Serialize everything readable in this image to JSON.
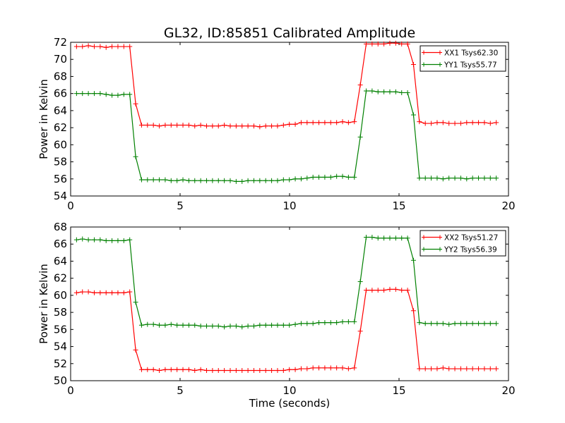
{
  "figure": {
    "title": "GL32, ID:85851 Calibrated Amplitude"
  },
  "chart_data": [
    {
      "type": "line",
      "title": "GL32, ID:85851 Calibrated Amplitude",
      "xlabel": "",
      "ylabel": "Power in Kelvin",
      "xlim": [
        0,
        20
      ],
      "ylim": [
        54,
        72
      ],
      "xticks": [
        "0",
        "5",
        "10",
        "15",
        "20"
      ],
      "yticks": [
        "54",
        "56",
        "58",
        "60",
        "62",
        "64",
        "66",
        "68",
        "70",
        "72"
      ],
      "grid": false,
      "legend_position": "top-right",
      "x": [
        0.27,
        0.54,
        0.81,
        1.08,
        1.35,
        1.62,
        1.89,
        2.16,
        2.43,
        2.7,
        2.97,
        3.24,
        3.51,
        3.78,
        4.05,
        4.32,
        4.59,
        4.86,
        5.13,
        5.4,
        5.67,
        5.94,
        6.21,
        6.48,
        6.75,
        7.02,
        7.29,
        7.56,
        7.83,
        8.1,
        8.37,
        8.64,
        8.91,
        9.18,
        9.45,
        9.72,
        9.99,
        10.26,
        10.53,
        10.8,
        11.07,
        11.34,
        11.61,
        11.88,
        12.15,
        12.42,
        12.69,
        12.96,
        13.23,
        13.5,
        13.77,
        14.04,
        14.31,
        14.58,
        14.85,
        15.12,
        15.39,
        15.66,
        15.93,
        16.2,
        16.47,
        16.74,
        17.01,
        17.28,
        17.55,
        17.82,
        18.09,
        18.36,
        18.63,
        18.9,
        19.17,
        19.44
      ],
      "series": [
        {
          "name": "XX1 Tsys62.30",
          "color": "#ff0000",
          "values": [
            71.5,
            71.5,
            71.6,
            71.5,
            71.5,
            71.4,
            71.5,
            71.5,
            71.5,
            71.5,
            64.8,
            62.3,
            62.3,
            62.3,
            62.2,
            62.3,
            62.3,
            62.3,
            62.3,
            62.3,
            62.2,
            62.3,
            62.2,
            62.2,
            62.2,
            62.3,
            62.2,
            62.2,
            62.2,
            62.2,
            62.2,
            62.1,
            62.2,
            62.2,
            62.2,
            62.3,
            62.4,
            62.4,
            62.6,
            62.6,
            62.6,
            62.6,
            62.6,
            62.6,
            62.6,
            62.7,
            62.6,
            62.7,
            67.0,
            71.8,
            71.8,
            71.8,
            71.8,
            71.9,
            71.9,
            71.8,
            71.8,
            69.4,
            62.7,
            62.5,
            62.5,
            62.6,
            62.6,
            62.5,
            62.5,
            62.5,
            62.6,
            62.6,
            62.6,
            62.6,
            62.5,
            62.6
          ]
        },
        {
          "name": "YY1 Tsys55.77",
          "color": "#008000",
          "values": [
            66.0,
            66.0,
            66.0,
            66.0,
            66.0,
            65.9,
            65.8,
            65.8,
            65.9,
            65.9,
            58.6,
            55.9,
            55.9,
            55.9,
            55.9,
            55.9,
            55.8,
            55.8,
            55.9,
            55.8,
            55.8,
            55.8,
            55.8,
            55.8,
            55.8,
            55.8,
            55.8,
            55.7,
            55.7,
            55.8,
            55.8,
            55.8,
            55.8,
            55.8,
            55.8,
            55.9,
            55.9,
            56.0,
            56.0,
            56.1,
            56.2,
            56.2,
            56.2,
            56.2,
            56.3,
            56.3,
            56.2,
            56.2,
            60.9,
            66.3,
            66.3,
            66.2,
            66.2,
            66.2,
            66.2,
            66.1,
            66.1,
            63.5,
            56.1,
            56.1,
            56.1,
            56.1,
            56.0,
            56.1,
            56.1,
            56.1,
            56.0,
            56.1,
            56.1,
            56.1,
            56.1,
            56.1
          ]
        }
      ]
    },
    {
      "type": "line",
      "title": "",
      "xlabel": "Time (seconds)",
      "ylabel": "Power in Kelvin",
      "xlim": [
        0,
        20
      ],
      "ylim": [
        50,
        68
      ],
      "xticks": [
        "0",
        "5",
        "10",
        "15",
        "20"
      ],
      "yticks": [
        "50",
        "52",
        "54",
        "56",
        "58",
        "60",
        "62",
        "64",
        "66",
        "68"
      ],
      "grid": false,
      "legend_position": "top-right",
      "x": [
        0.27,
        0.54,
        0.81,
        1.08,
        1.35,
        1.62,
        1.89,
        2.16,
        2.43,
        2.7,
        2.97,
        3.24,
        3.51,
        3.78,
        4.05,
        4.32,
        4.59,
        4.86,
        5.13,
        5.4,
        5.67,
        5.94,
        6.21,
        6.48,
        6.75,
        7.02,
        7.29,
        7.56,
        7.83,
        8.1,
        8.37,
        8.64,
        8.91,
        9.18,
        9.45,
        9.72,
        9.99,
        10.26,
        10.53,
        10.8,
        11.07,
        11.34,
        11.61,
        11.88,
        12.15,
        12.42,
        12.69,
        12.96,
        13.23,
        13.5,
        13.77,
        14.04,
        14.31,
        14.58,
        14.85,
        15.12,
        15.39,
        15.66,
        15.93,
        16.2,
        16.47,
        16.74,
        17.01,
        17.28,
        17.55,
        17.82,
        18.09,
        18.36,
        18.63,
        18.9,
        19.17,
        19.44
      ],
      "series": [
        {
          "name": "XX2 Tsys51.27",
          "color": "#ff0000",
          "values": [
            60.3,
            60.4,
            60.4,
            60.3,
            60.3,
            60.3,
            60.3,
            60.3,
            60.3,
            60.4,
            53.6,
            51.3,
            51.3,
            51.3,
            51.2,
            51.3,
            51.3,
            51.3,
            51.3,
            51.3,
            51.2,
            51.3,
            51.2,
            51.2,
            51.2,
            51.2,
            51.2,
            51.2,
            51.2,
            51.2,
            51.2,
            51.2,
            51.2,
            51.2,
            51.2,
            51.2,
            51.3,
            51.3,
            51.4,
            51.4,
            51.5,
            51.5,
            51.5,
            51.5,
            51.5,
            51.5,
            51.4,
            51.5,
            55.8,
            60.6,
            60.6,
            60.6,
            60.6,
            60.7,
            60.7,
            60.6,
            60.6,
            58.2,
            51.4,
            51.4,
            51.4,
            51.4,
            51.5,
            51.4,
            51.4,
            51.4,
            51.4,
            51.4,
            51.4,
            51.4,
            51.4,
            51.4
          ]
        },
        {
          "name": "YY2 Tsys56.39",
          "color": "#008000",
          "values": [
            66.5,
            66.6,
            66.5,
            66.5,
            66.5,
            66.4,
            66.4,
            66.4,
            66.4,
            66.5,
            59.2,
            56.5,
            56.6,
            56.6,
            56.5,
            56.5,
            56.6,
            56.5,
            56.5,
            56.5,
            56.5,
            56.4,
            56.4,
            56.4,
            56.4,
            56.3,
            56.4,
            56.4,
            56.3,
            56.4,
            56.4,
            56.5,
            56.5,
            56.5,
            56.5,
            56.5,
            56.5,
            56.6,
            56.7,
            56.7,
            56.7,
            56.8,
            56.8,
            56.8,
            56.8,
            56.9,
            56.9,
            56.9,
            61.6,
            66.8,
            66.8,
            66.7,
            66.7,
            66.7,
            66.7,
            66.7,
            66.7,
            64.1,
            56.8,
            56.7,
            56.7,
            56.7,
            56.7,
            56.6,
            56.7,
            56.7,
            56.7,
            56.7,
            56.7,
            56.7,
            56.7,
            56.7
          ]
        }
      ]
    }
  ]
}
